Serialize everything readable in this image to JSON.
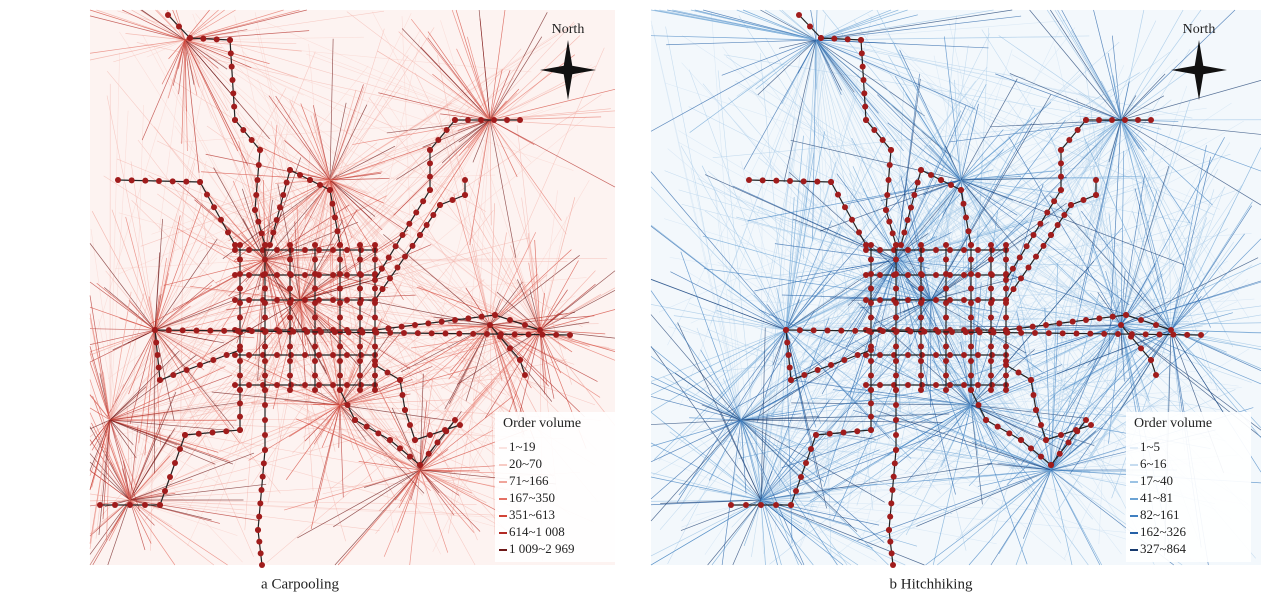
{
  "panels": [
    {
      "caption": "a Carpooling",
      "north": "North",
      "legend": {
        "title": "Order volume",
        "items": [
          {
            "label": "1~19",
            "color": "#fbe3e0"
          },
          {
            "label": "20~70",
            "color": "#f7cbc4"
          },
          {
            "label": "71~166",
            "color": "#f0a59b"
          },
          {
            "label": "167~350",
            "color": "#e47064"
          },
          {
            "label": "351~613",
            "color": "#d24437"
          },
          {
            "label": "614~1 008",
            "color": "#b22a24"
          },
          {
            "label": "1 009~2 969",
            "color": "#6e1818"
          }
        ]
      }
    },
    {
      "caption": "b Hitchhiking",
      "north": "North",
      "legend": {
        "title": "Order volume",
        "items": [
          {
            "label": "1~5",
            "color": "#e3eef8"
          },
          {
            "label": "6~16",
            "color": "#c6dcf0"
          },
          {
            "label": "17~40",
            "color": "#9cc3e4"
          },
          {
            "label": "41~81",
            "color": "#6ba3d4"
          },
          {
            "label": "82~161",
            "color": "#3f80c1"
          },
          {
            "label": "162~326",
            "color": "#2460a6"
          },
          {
            "label": "327~864",
            "color": "#173a6e"
          }
        ]
      }
    }
  ]
}
